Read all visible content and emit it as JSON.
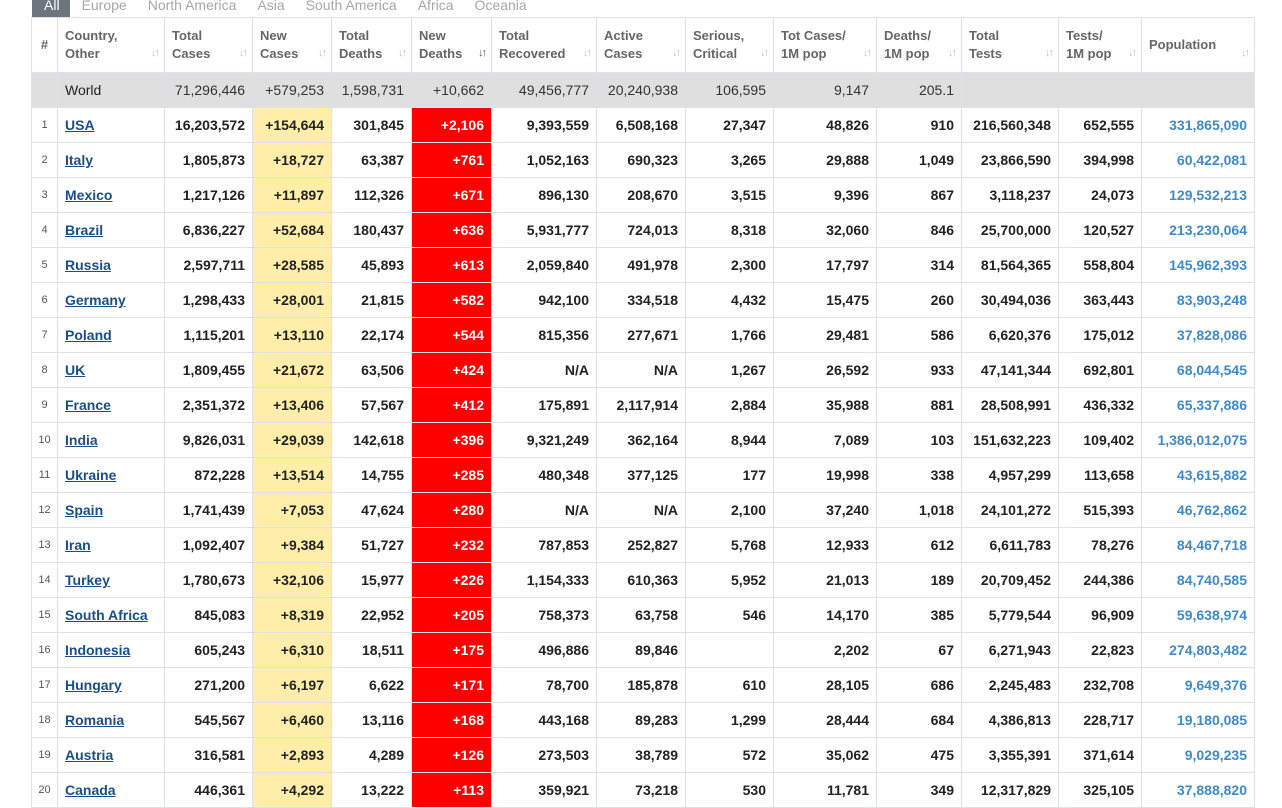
{
  "tabs": [
    "All",
    "Europe",
    "North America",
    "Asia",
    "South America",
    "Africa",
    "Oceania"
  ],
  "columns": [
    {
      "line1": "#",
      "line2": ""
    },
    {
      "line1": "Country,",
      "line2": "Other"
    },
    {
      "line1": "Total",
      "line2": "Cases"
    },
    {
      "line1": "New",
      "line2": "Cases"
    },
    {
      "line1": "Total",
      "line2": "Deaths"
    },
    {
      "line1": "New",
      "line2": "Deaths"
    },
    {
      "line1": "Total",
      "line2": "Recovered"
    },
    {
      "line1": "Active",
      "line2": "Cases"
    },
    {
      "line1": "Serious,",
      "line2": "Critical"
    },
    {
      "line1": "Tot Cases/",
      "line2": "1M pop"
    },
    {
      "line1": "Deaths/",
      "line2": "1M pop"
    },
    {
      "line1": "Total",
      "line2": "Tests"
    },
    {
      "line1": "Tests/",
      "line2": "1M pop"
    },
    {
      "line1": "Population",
      "line2": ""
    }
  ],
  "sort_icon": "↓↑",
  "world": {
    "country": "World",
    "total_cases": "71,296,446",
    "new_cases": "+579,253",
    "total_deaths": "1,598,731",
    "new_deaths": "+10,662",
    "total_recovered": "49,456,777",
    "active_cases": "20,240,938",
    "serious": "106,595",
    "cases_per_1m": "9,147",
    "deaths_per_1m": "205.1",
    "total_tests": "",
    "tests_per_1m": "",
    "population": ""
  },
  "rows": [
    {
      "num": "1",
      "country": "USA",
      "total_cases": "16,203,572",
      "new_cases": "+154,644",
      "total_deaths": "301,845",
      "new_deaths": "+2,106",
      "total_recovered": "9,393,559",
      "active_cases": "6,508,168",
      "serious": "27,347",
      "cases_per_1m": "48,826",
      "deaths_per_1m": "910",
      "total_tests": "216,560,348",
      "tests_per_1m": "652,555",
      "population": "331,865,090"
    },
    {
      "num": "2",
      "country": "Italy",
      "total_cases": "1,805,873",
      "new_cases": "+18,727",
      "total_deaths": "63,387",
      "new_deaths": "+761",
      "total_recovered": "1,052,163",
      "active_cases": "690,323",
      "serious": "3,265",
      "cases_per_1m": "29,888",
      "deaths_per_1m": "1,049",
      "total_tests": "23,866,590",
      "tests_per_1m": "394,998",
      "population": "60,422,081"
    },
    {
      "num": "3",
      "country": "Mexico",
      "total_cases": "1,217,126",
      "new_cases": "+11,897",
      "total_deaths": "112,326",
      "new_deaths": "+671",
      "total_recovered": "896,130",
      "active_cases": "208,670",
      "serious": "3,515",
      "cases_per_1m": "9,396",
      "deaths_per_1m": "867",
      "total_tests": "3,118,237",
      "tests_per_1m": "24,073",
      "population": "129,532,213"
    },
    {
      "num": "4",
      "country": "Brazil",
      "total_cases": "6,836,227",
      "new_cases": "+52,684",
      "total_deaths": "180,437",
      "new_deaths": "+636",
      "total_recovered": "5,931,777",
      "active_cases": "724,013",
      "serious": "8,318",
      "cases_per_1m": "32,060",
      "deaths_per_1m": "846",
      "total_tests": "25,700,000",
      "tests_per_1m": "120,527",
      "population": "213,230,064"
    },
    {
      "num": "5",
      "country": "Russia",
      "total_cases": "2,597,711",
      "new_cases": "+28,585",
      "total_deaths": "45,893",
      "new_deaths": "+613",
      "total_recovered": "2,059,840",
      "active_cases": "491,978",
      "serious": "2,300",
      "cases_per_1m": "17,797",
      "deaths_per_1m": "314",
      "total_tests": "81,564,365",
      "tests_per_1m": "558,804",
      "population": "145,962,393"
    },
    {
      "num": "6",
      "country": "Germany",
      "total_cases": "1,298,433",
      "new_cases": "+28,001",
      "total_deaths": "21,815",
      "new_deaths": "+582",
      "total_recovered": "942,100",
      "active_cases": "334,518",
      "serious": "4,432",
      "cases_per_1m": "15,475",
      "deaths_per_1m": "260",
      "total_tests": "30,494,036",
      "tests_per_1m": "363,443",
      "population": "83,903,248"
    },
    {
      "num": "7",
      "country": "Poland",
      "total_cases": "1,115,201",
      "new_cases": "+13,110",
      "total_deaths": "22,174",
      "new_deaths": "+544",
      "total_recovered": "815,356",
      "active_cases": "277,671",
      "serious": "1,766",
      "cases_per_1m": "29,481",
      "deaths_per_1m": "586",
      "total_tests": "6,620,376",
      "tests_per_1m": "175,012",
      "population": "37,828,086"
    },
    {
      "num": "8",
      "country": "UK",
      "total_cases": "1,809,455",
      "new_cases": "+21,672",
      "total_deaths": "63,506",
      "new_deaths": "+424",
      "total_recovered": "N/A",
      "active_cases": "N/A",
      "serious": "1,267",
      "cases_per_1m": "26,592",
      "deaths_per_1m": "933",
      "total_tests": "47,141,344",
      "tests_per_1m": "692,801",
      "population": "68,044,545"
    },
    {
      "num": "9",
      "country": "France",
      "total_cases": "2,351,372",
      "new_cases": "+13,406",
      "total_deaths": "57,567",
      "new_deaths": "+412",
      "total_recovered": "175,891",
      "active_cases": "2,117,914",
      "serious": "2,884",
      "cases_per_1m": "35,988",
      "deaths_per_1m": "881",
      "total_tests": "28,508,991",
      "tests_per_1m": "436,332",
      "population": "65,337,886"
    },
    {
      "num": "10",
      "country": "India",
      "total_cases": "9,826,031",
      "new_cases": "+29,039",
      "total_deaths": "142,618",
      "new_deaths": "+396",
      "total_recovered": "9,321,249",
      "active_cases": "362,164",
      "serious": "8,944",
      "cases_per_1m": "7,089",
      "deaths_per_1m": "103",
      "total_tests": "151,632,223",
      "tests_per_1m": "109,402",
      "population": "1,386,012,075"
    },
    {
      "num": "11",
      "country": "Ukraine",
      "total_cases": "872,228",
      "new_cases": "+13,514",
      "total_deaths": "14,755",
      "new_deaths": "+285",
      "total_recovered": "480,348",
      "active_cases": "377,125",
      "serious": "177",
      "cases_per_1m": "19,998",
      "deaths_per_1m": "338",
      "total_tests": "4,957,299",
      "tests_per_1m": "113,658",
      "population": "43,615,882"
    },
    {
      "num": "12",
      "country": "Spain",
      "total_cases": "1,741,439",
      "new_cases": "+7,053",
      "total_deaths": "47,624",
      "new_deaths": "+280",
      "total_recovered": "N/A",
      "active_cases": "N/A",
      "serious": "2,100",
      "cases_per_1m": "37,240",
      "deaths_per_1m": "1,018",
      "total_tests": "24,101,272",
      "tests_per_1m": "515,393",
      "population": "46,762,862"
    },
    {
      "num": "13",
      "country": "Iran",
      "total_cases": "1,092,407",
      "new_cases": "+9,384",
      "total_deaths": "51,727",
      "new_deaths": "+232",
      "total_recovered": "787,853",
      "active_cases": "252,827",
      "serious": "5,768",
      "cases_per_1m": "12,933",
      "deaths_per_1m": "612",
      "total_tests": "6,611,783",
      "tests_per_1m": "78,276",
      "population": "84,467,718"
    },
    {
      "num": "14",
      "country": "Turkey",
      "total_cases": "1,780,673",
      "new_cases": "+32,106",
      "total_deaths": "15,977",
      "new_deaths": "+226",
      "total_recovered": "1,154,333",
      "active_cases": "610,363",
      "serious": "5,952",
      "cases_per_1m": "21,013",
      "deaths_per_1m": "189",
      "total_tests": "20,709,452",
      "tests_per_1m": "244,386",
      "population": "84,740,585"
    },
    {
      "num": "15",
      "country": "South Africa",
      "total_cases": "845,083",
      "new_cases": "+8,319",
      "total_deaths": "22,952",
      "new_deaths": "+205",
      "total_recovered": "758,373",
      "active_cases": "63,758",
      "serious": "546",
      "cases_per_1m": "14,170",
      "deaths_per_1m": "385",
      "total_tests": "5,779,544",
      "tests_per_1m": "96,909",
      "population": "59,638,974"
    },
    {
      "num": "16",
      "country": "Indonesia",
      "total_cases": "605,243",
      "new_cases": "+6,310",
      "total_deaths": "18,511",
      "new_deaths": "+175",
      "total_recovered": "496,886",
      "active_cases": "89,846",
      "serious": "",
      "cases_per_1m": "2,202",
      "deaths_per_1m": "67",
      "total_tests": "6,271,943",
      "tests_per_1m": "22,823",
      "population": "274,803,482"
    },
    {
      "num": "17",
      "country": "Hungary",
      "total_cases": "271,200",
      "new_cases": "+6,197",
      "total_deaths": "6,622",
      "new_deaths": "+171",
      "total_recovered": "78,700",
      "active_cases": "185,878",
      "serious": "610",
      "cases_per_1m": "28,105",
      "deaths_per_1m": "686",
      "total_tests": "2,245,483",
      "tests_per_1m": "232,708",
      "population": "9,649,376"
    },
    {
      "num": "18",
      "country": "Romania",
      "total_cases": "545,567",
      "new_cases": "+6,460",
      "total_deaths": "13,116",
      "new_deaths": "+168",
      "total_recovered": "443,168",
      "active_cases": "89,283",
      "serious": "1,299",
      "cases_per_1m": "28,444",
      "deaths_per_1m": "684",
      "total_tests": "4,386,813",
      "tests_per_1m": "228,717",
      "population": "19,180,085"
    },
    {
      "num": "19",
      "country": "Austria",
      "total_cases": "316,581",
      "new_cases": "+2,893",
      "total_deaths": "4,289",
      "new_deaths": "+126",
      "total_recovered": "273,503",
      "active_cases": "38,789",
      "serious": "572",
      "cases_per_1m": "35,062",
      "deaths_per_1m": "475",
      "total_tests": "3,355,391",
      "tests_per_1m": "371,614",
      "population": "9,029,235"
    },
    {
      "num": "20",
      "country": "Canada",
      "total_cases": "446,361",
      "new_cases": "+4,292",
      "total_deaths": "13,222",
      "new_deaths": "+113",
      "total_recovered": "359,921",
      "active_cases": "73,218",
      "serious": "530",
      "cases_per_1m": "11,781",
      "deaths_per_1m": "349",
      "total_tests": "12,317,829",
      "tests_per_1m": "325,105",
      "population": "37,888,820"
    }
  ]
}
